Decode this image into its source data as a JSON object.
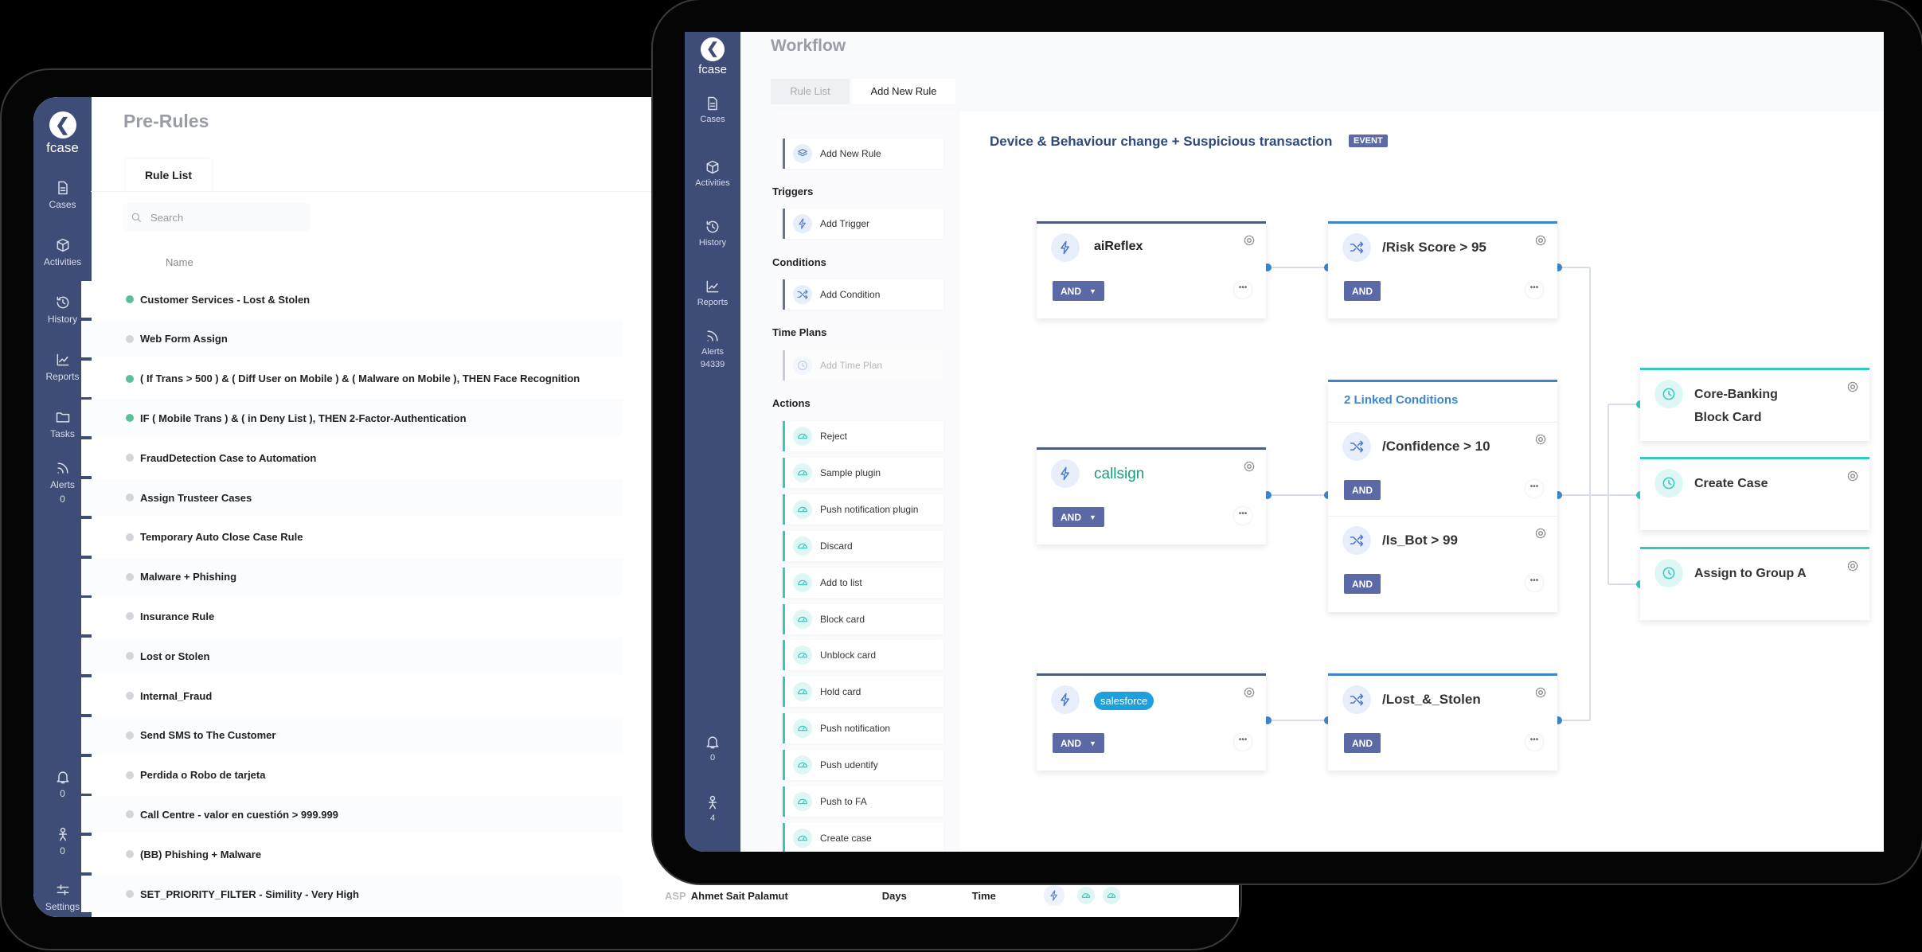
{
  "left_app": {
    "brand": "fcase",
    "page_title": "Pre-Rules",
    "tab": "Rule List",
    "search_placeholder": "Search",
    "column_name": "Name",
    "sidebar": [
      {
        "label": "Cases",
        "icon": "doc"
      },
      {
        "label": "Activities",
        "icon": "cube"
      },
      {
        "label": "History",
        "icon": "history"
      },
      {
        "label": "Reports",
        "icon": "chart"
      },
      {
        "label": "Tasks",
        "icon": "folder"
      },
      {
        "label": "Alerts",
        "icon": "rss",
        "count": "0"
      }
    ],
    "sidebar_bottom": [
      {
        "icon": "bell",
        "count": "0"
      },
      {
        "icon": "user",
        "count": "0"
      },
      {
        "icon": "sliders",
        "label": "Settings"
      }
    ],
    "rules": [
      {
        "name": "Customer Services - Lost & Stolen",
        "active": true
      },
      {
        "name": "Web Form Assign",
        "active": false
      },
      {
        "name": "( If Trans > 500 ) & ( Diff User on Mobile ) & ( Malware on Mobile ), THEN Face Recognition",
        "active": true
      },
      {
        "name": "IF ( Mobile Trans ) & ( in Deny List ), THEN 2-Factor-Authentication",
        "active": true
      },
      {
        "name": "FraudDetection Case to Automation",
        "active": false
      },
      {
        "name": "Assign Trusteer Cases",
        "active": false
      },
      {
        "name": "Temporary Auto Close Case Rule",
        "active": false
      },
      {
        "name": "Malware + Phishing",
        "active": false
      },
      {
        "name": "Insurance Rule",
        "active": false
      },
      {
        "name": "Lost or Stolen",
        "active": false
      },
      {
        "name": "Internal_Fraud",
        "active": false
      },
      {
        "name": "Send SMS to The Customer",
        "active": false
      },
      {
        "name": "Perdida o Robo de tarjeta",
        "active": false
      },
      {
        "name": "Call Centre - valor en cuestión > 999.999",
        "active": false
      },
      {
        "name": "(BB) Phishing + Malware",
        "active": false
      },
      {
        "name": "SET_PRIORITY_FILTER - Simility - Very High",
        "active": false
      }
    ],
    "last_row_extra": {
      "initials": "ASP",
      "owner": "Ahmet Sait Palamut",
      "period": "Days",
      "type": "Time"
    }
  },
  "right_app": {
    "brand": "fcase",
    "page_title": "Workflow",
    "tabs": [
      {
        "label": "Rule List",
        "active": false
      },
      {
        "label": "Add New Rule",
        "active": true
      }
    ],
    "sidebar": [
      {
        "label": "Cases",
        "icon": "doc"
      },
      {
        "label": "Activities",
        "icon": "cube"
      },
      {
        "label": "History",
        "icon": "history"
      },
      {
        "label": "Reports",
        "icon": "chart"
      },
      {
        "label": "Alerts",
        "icon": "rss",
        "count": "94339"
      }
    ],
    "sidebar_bottom": [
      {
        "icon": "bell",
        "count": "0"
      },
      {
        "icon": "user",
        "count": "4"
      }
    ],
    "palette": {
      "add_rule": "Add New Rule",
      "triggers_heading": "Triggers",
      "add_trigger": "Add Trigger",
      "conditions_heading": "Conditions",
      "add_condition": "Add Condition",
      "time_plans_heading": "Time Plans",
      "add_time_plan": "Add Time Plan",
      "actions_heading": "Actions",
      "actions": [
        "Reject",
        "Sample plugin",
        "Push notification plugin",
        "Discard",
        "Add to list",
        "Block card",
        "Unblock card",
        "Hold card",
        "Push notification",
        "Push udentify",
        "Push to FA",
        "Create case"
      ]
    },
    "flow": {
      "rule_title": "Device & Behaviour change + Suspicious transaction",
      "badge": "EVENT",
      "and_label": "AND",
      "triggers": [
        {
          "logo": "aiReflex"
        },
        {
          "logo": "callsign"
        },
        {
          "logo": "salesforce"
        }
      ],
      "conditions": {
        "risk": "/Risk Score > 95",
        "linked_header": "2 Linked Conditions",
        "confidence": "/Confidence > 10",
        "is_bot": "/Is_Bot > 99",
        "lost": "/Lost_&_Stolen"
      },
      "actions": [
        "Core-Banking Block Card",
        "Create Case",
        "Assign to Group A"
      ]
    }
  },
  "colors": {
    "sidebar": "#3e4d77",
    "and_button": "#5b6aa6",
    "condition_accent": "#3b86cf",
    "action_accent": "#34c9bd",
    "title": "#2f4a7a",
    "active_dot": "#5bbf9a"
  }
}
